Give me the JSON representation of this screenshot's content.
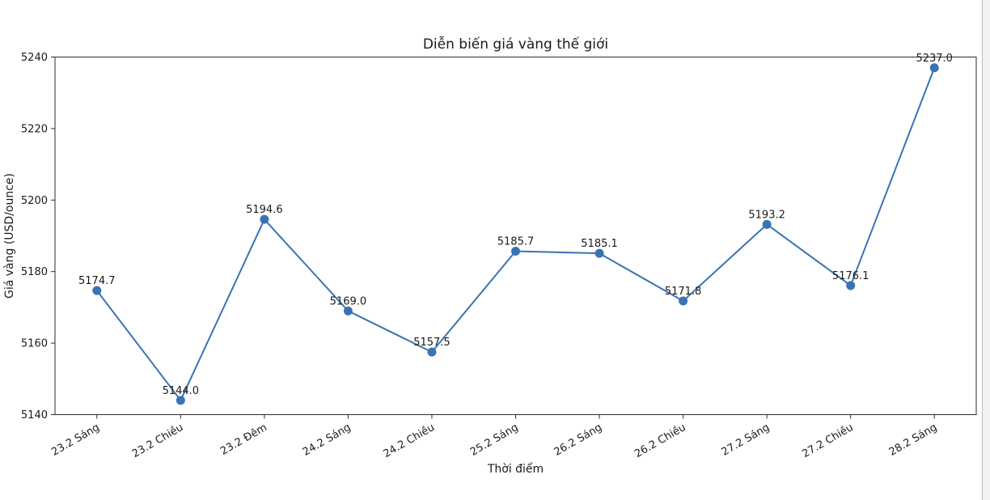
{
  "chart_data": {
    "type": "line",
    "title": "Diễn biến giá vàng thế giới",
    "xlabel": "Thời điểm",
    "ylabel": "Giá vàng (USD/ounce)",
    "categories": [
      "23.2 Sáng",
      "23.2 Chiều",
      "23.2 Đêm",
      "24.2 Sáng",
      "24.2 Chiều",
      "25.2 Sáng",
      "26.2 Sáng",
      "26.2 Chiều",
      "27.2 Sáng",
      "27.2 Chiều",
      "28.2 Sáng"
    ],
    "values": [
      5174.7,
      5144.0,
      5194.6,
      5169.0,
      5157.5,
      5185.7,
      5185.1,
      5171.8,
      5193.2,
      5176.1,
      5237.0
    ],
    "point_labels": [
      "5174.7",
      "5144.0",
      "5194.6",
      "5169.0",
      "5157.5",
      "5185.7",
      "5185.1",
      "5171.8",
      "5193.2",
      "5176.1",
      "5237.0"
    ],
    "yticks": [
      5140,
      5160,
      5180,
      5200,
      5220,
      5240
    ],
    "ylim": [
      5140,
      5240
    ],
    "x_tick_rotation": 30,
    "grid": false,
    "legend": null,
    "line_color": "#3a73b3",
    "marker": "circle",
    "axis_color": "#2b2b2b",
    "text_color": "#1a1a1a"
  }
}
